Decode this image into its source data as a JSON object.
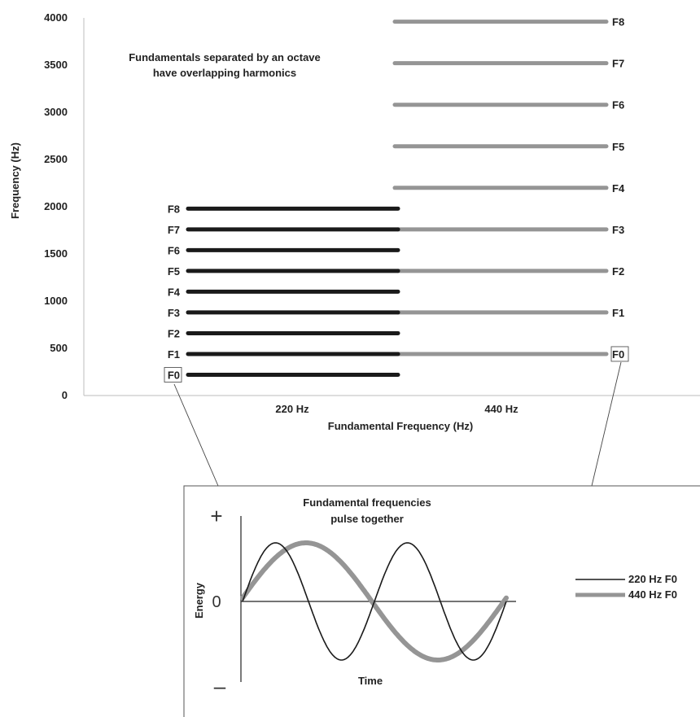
{
  "chart_data": [
    {
      "type": "bar",
      "subtype": "harmonic-lines",
      "title": "",
      "annotation": [
        "Fundamentals separated by an octave",
        "have overlapping harmonics"
      ],
      "xlabel": "Fundamental Frequency (Hz)",
      "ylabel": "Frequency (Hz)",
      "ylim": [
        0,
        4000
      ],
      "yticks": [
        0,
        500,
        1000,
        1500,
        2000,
        2500,
        3000,
        3500,
        4000
      ],
      "categories": [
        "220 Hz",
        "440 Hz"
      ],
      "grid": false,
      "colors": {
        "220": "#1a1a1a",
        "440": "#959595"
      },
      "series": [
        {
          "name": "220 Hz",
          "harmonics": [
            {
              "label": "F0",
              "value": 220,
              "boxed": true
            },
            {
              "label": "F1",
              "value": 440
            },
            {
              "label": "F2",
              "value": 660
            },
            {
              "label": "F3",
              "value": 880
            },
            {
              "label": "F4",
              "value": 1100
            },
            {
              "label": "F5",
              "value": 1320
            },
            {
              "label": "F6",
              "value": 1540
            },
            {
              "label": "F7",
              "value": 1760
            },
            {
              "label": "F8",
              "value": 1980
            }
          ]
        },
        {
          "name": "440 Hz",
          "harmonics": [
            {
              "label": "F0",
              "value": 440,
              "boxed": true
            },
            {
              "label": "F1",
              "value": 880
            },
            {
              "label": "F2",
              "value": 1320
            },
            {
              "label": "F3",
              "value": 1760
            },
            {
              "label": "F4",
              "value": 2200
            },
            {
              "label": "F5",
              "value": 2640
            },
            {
              "label": "F6",
              "value": 3080
            },
            {
              "label": "F7",
              "value": 3520
            },
            {
              "label": "F8",
              "value": 3960
            }
          ]
        }
      ]
    },
    {
      "type": "line",
      "title": "",
      "annotation": [
        "Fundamental frequencies",
        "pulse together"
      ],
      "xlabel": "Time",
      "ylabel": "Energy",
      "ytick_labels": [
        "+",
        "0",
        "–"
      ],
      "legend_position": "right",
      "series": [
        {
          "name": "220 Hz F0",
          "color": "#1a1a1a",
          "cycles": 2
        },
        {
          "name": "440 Hz F0",
          "color": "#959595",
          "cycles": 1
        }
      ]
    }
  ]
}
